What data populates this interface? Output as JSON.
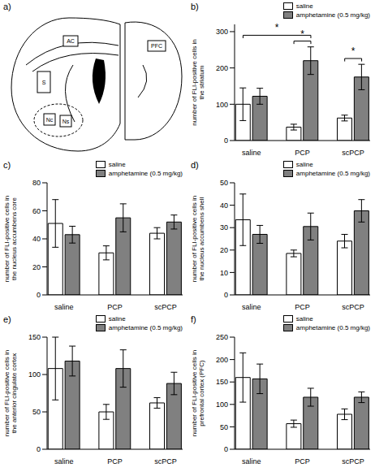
{
  "diagram": {
    "panel": "a)",
    "regions": [
      "AC",
      "S",
      "Nc",
      "Ns",
      "PFC"
    ]
  },
  "chart_data": [
    {
      "type": "bar",
      "panel": "b)",
      "y_label": "number of FLI-positive cells in the striatum",
      "categories": [
        "saline",
        "PCP",
        "scPCP"
      ],
      "series": [
        {
          "name": "saline",
          "color": "#ffffff",
          "values": [
            100,
            37,
            62
          ],
          "errors": [
            45,
            8,
            8
          ]
        },
        {
          "name": "amphetamine (0.5 mg/kg)",
          "color": "#808080",
          "values": [
            122,
            220,
            175
          ],
          "errors": [
            22,
            38,
            35
          ]
        }
      ],
      "ylim": [
        0,
        320
      ],
      "yticks": [
        0,
        100,
        200,
        300
      ],
      "legend": "top-right",
      "significance": [
        {
          "from": [
            "PCP",
            "saline"
          ],
          "to": [
            "PCP",
            "amphetamine (0.5 mg/kg)"
          ],
          "label": "*"
        },
        {
          "from": [
            "saline",
            "saline"
          ],
          "to": [
            "PCP",
            "amphetamine (0.5 mg/kg)"
          ],
          "label": "*"
        },
        {
          "from": [
            "scPCP",
            "saline"
          ],
          "to": [
            "scPCP",
            "amphetamine (0.5 mg/kg)"
          ],
          "label": "*"
        }
      ]
    },
    {
      "type": "bar",
      "panel": "c)",
      "y_label": "number of FLI-positive cells in the nucleus accumbens core",
      "categories": [
        "saline",
        "PCP",
        "scPCP"
      ],
      "series": [
        {
          "name": "saline",
          "color": "#ffffff",
          "values": [
            51,
            30,
            44
          ],
          "errors": [
            17,
            5,
            4
          ]
        },
        {
          "name": "amphetamine (0.5 mg/kg)",
          "color": "#808080",
          "values": [
            43,
            55,
            52
          ],
          "errors": [
            6,
            10,
            5
          ]
        }
      ],
      "ylim": [
        0,
        80
      ],
      "yticks": [
        0,
        20,
        40,
        60,
        80
      ],
      "legend": "top-right"
    },
    {
      "type": "bar",
      "panel": "d)",
      "y_label": "number of FLI-positive cells in the nucleus accumbens shell",
      "categories": [
        "saline",
        "PCP",
        "scPCP"
      ],
      "series": [
        {
          "name": "saline",
          "color": "#ffffff",
          "values": [
            33.5,
            18.5,
            24
          ],
          "errors": [
            11.5,
            1.5,
            3
          ]
        },
        {
          "name": "amphetamine (0.5 mg/kg)",
          "color": "#808080",
          "values": [
            27,
            30.5,
            37.5
          ],
          "errors": [
            4,
            6,
            5
          ]
        }
      ],
      "ylim": [
        0,
        50
      ],
      "yticks": [
        0,
        10,
        20,
        30,
        40,
        50
      ],
      "legend": "top-right"
    },
    {
      "type": "bar",
      "panel": "e)",
      "y_label": "number of FLI-positive cells in the anterior cingulate cortex",
      "categories": [
        "saline",
        "PCP",
        "scPCP"
      ],
      "series": [
        {
          "name": "saline",
          "color": "#ffffff",
          "values": [
            108,
            50,
            62
          ],
          "errors": [
            42,
            10,
            7
          ]
        },
        {
          "name": "amphetamine (0.5 mg/kg)",
          "color": "#808080",
          "values": [
            118,
            108,
            88
          ],
          "errors": [
            20,
            25,
            15
          ]
        }
      ],
      "ylim": [
        0,
        150
      ],
      "yticks": [
        0,
        50,
        100,
        150
      ],
      "legend": "top-right"
    },
    {
      "type": "bar",
      "panel": "f)",
      "y_label": "number of FLI-positive cells in prefrontal cortex (PFC)",
      "categories": [
        "saline",
        "PCP",
        "scPCP"
      ],
      "series": [
        {
          "name": "saline",
          "color": "#ffffff",
          "values": [
            160,
            57,
            78
          ],
          "errors": [
            55,
            8,
            12
          ]
        },
        {
          "name": "amphetamine (0.5 mg/kg)",
          "color": "#808080",
          "values": [
            157,
            116,
            116
          ],
          "errors": [
            33,
            20,
            12
          ]
        }
      ],
      "ylim": [
        0,
        250
      ],
      "yticks": [
        0,
        50,
        100,
        150,
        200,
        250
      ],
      "legend": "top-right"
    }
  ]
}
